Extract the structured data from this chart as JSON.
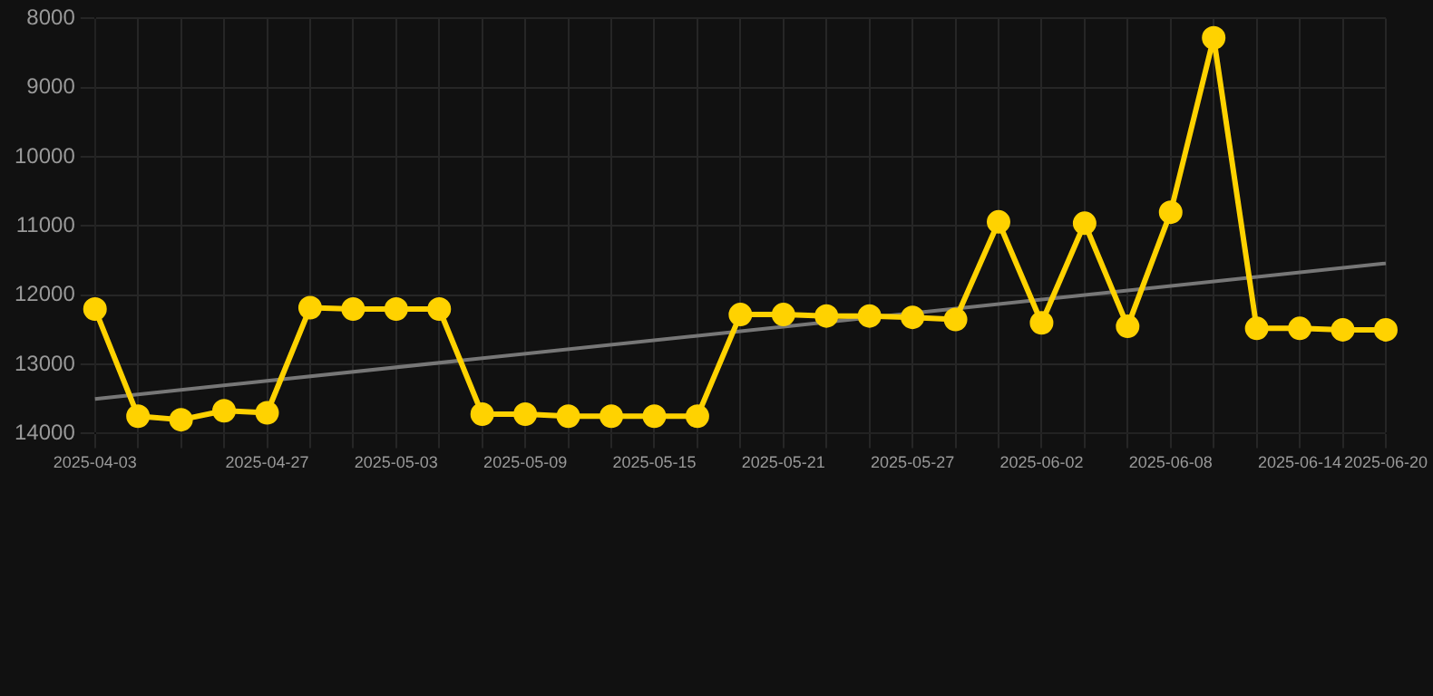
{
  "chart_data": {
    "type": "line",
    "categories": [
      "2025-04-03",
      null,
      null,
      null,
      "2025-04-27",
      null,
      null,
      "2025-05-03",
      null,
      null,
      "2025-05-09",
      null,
      null,
      "2025-05-15",
      null,
      null,
      "2025-05-21",
      null,
      null,
      "2025-05-27",
      null,
      null,
      "2025-06-02",
      null,
      null,
      "2025-06-08",
      null,
      null,
      "2025-06-14",
      null,
      "2025-06-20"
    ],
    "series": [
      {
        "color": "#ffd200",
        "marker": "circle",
        "values": [
          12200,
          13750,
          13800,
          13670,
          13700,
          12180,
          12200,
          12200,
          12200,
          13720,
          13720,
          13750,
          13750,
          13750,
          13750,
          12280,
          12280,
          12300,
          12300,
          12320,
          12350,
          10940,
          12400,
          10960,
          12450,
          10800,
          8280,
          12480,
          12480,
          12500,
          12500
        ]
      },
      {
        "type": "line",
        "color": "#777777",
        "marker": "none",
        "values": [
          13500,
          null,
          null,
          null,
          null,
          null,
          null,
          null,
          null,
          null,
          null,
          null,
          null,
          null,
          null,
          null,
          null,
          null,
          null,
          null,
          null,
          null,
          null,
          null,
          null,
          null,
          null,
          null,
          null,
          null,
          11540
        ]
      }
    ],
    "ylim": [
      14000,
      8000
    ],
    "yticks": [
      8000,
      9000,
      10000,
      11000,
      12000,
      13000,
      14000
    ],
    "grid": true,
    "legend": false
  }
}
